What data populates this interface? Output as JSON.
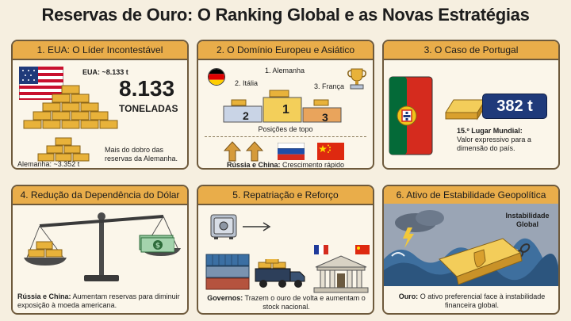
{
  "title": "Reservas de Ouro: O Ranking Global e as Novas Estratégias",
  "panels": [
    {
      "header": "1. EUA: O Líder Incontestável",
      "us_label": "EUA: ~8.133 t",
      "big_number": "8.133",
      "big_unit": "TONELADAS",
      "comparison": "Mais do dobro das reservas da Alemanha.",
      "de_label": "Alemanha: ~3.352 t"
    },
    {
      "header": "2. O Domínio Europeu e Asiático",
      "first": "1. Alemanha",
      "second": "2. Itália",
      "third": "3. França",
      "podium_1": "1",
      "podium_2": "2",
      "podium_3": "3",
      "caption": "Posições de topo",
      "growth_bold": "Rússia e China:",
      "growth_text": "Crescimento rápido"
    },
    {
      "header": "3. O Caso de Portugal",
      "amount": "382 t",
      "rank_bold": "15.º Lugar Mundial:",
      "rank_text": "Valor expressivo para a dimensão do país."
    },
    {
      "header": "4. Redução da Dependência do Dólar",
      "bold": "Rússia e China:",
      "text": "Aumentam reservas para diminuir exposição à moeda americana."
    },
    {
      "header": "5. Repatriação e Reforço",
      "bold": "Governos:",
      "text": "Trazem o ouro de volta e aumentam o stock nacional."
    },
    {
      "header": "6. Ativo de Estabilidade Geopolítica",
      "storm_label": "Instabilidade Global",
      "bold": "Ouro:",
      "text": "O ativo preferencial face à instabilidade financeira global."
    }
  ],
  "colors": {
    "header": "#e9ad4a",
    "gold": "#e8b23a",
    "border": "#6e5a3c",
    "background": "#f6efe0"
  }
}
